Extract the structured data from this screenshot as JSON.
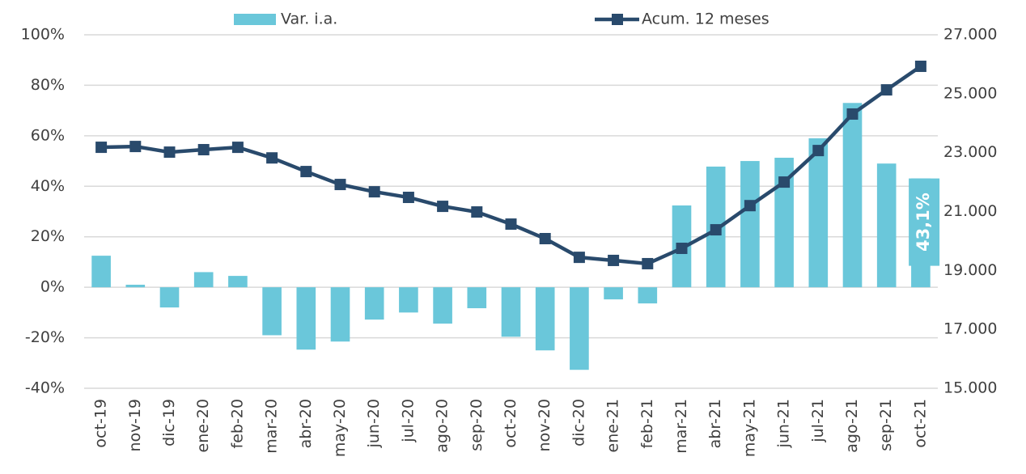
{
  "chart_data": {
    "type": "bar_line",
    "categories": [
      "oct-19",
      "nov-19",
      "dic-19",
      "ene-20",
      "feb-20",
      "mar-20",
      "abr-20",
      "may-20",
      "jun-20",
      "jul-20",
      "ago-20",
      "sep-20",
      "oct-20",
      "nov-20",
      "dic-20",
      "ene-21",
      "feb-21",
      "mar-21",
      "abr-21",
      "may-21",
      "jun-21",
      "jul-21",
      "ago-21",
      "sep-21",
      "oct-21"
    ],
    "series": [
      {
        "name": "Var. i.a.",
        "type": "bar",
        "color": "#6ac7da",
        "values": [
          12.5,
          1,
          -8,
          6,
          4.5,
          -19,
          -24.7,
          -21.5,
          -12.8,
          -10,
          -14.4,
          -8.3,
          -19.6,
          -25,
          -32.7,
          -4.8,
          -6.4,
          32.4,
          47.8,
          50,
          51.3,
          59,
          73,
          49,
          43.1
        ],
        "value_labels": [
          null,
          null,
          null,
          null,
          null,
          null,
          null,
          null,
          null,
          null,
          null,
          null,
          null,
          null,
          null,
          null,
          null,
          null,
          null,
          null,
          null,
          null,
          null,
          null,
          "43,1%"
        ]
      },
      {
        "name": "Acum. 12 meses",
        "type": "line",
        "axis": "y2",
        "color": "#294a6c",
        "values": [
          23181,
          23208,
          23016,
          23100,
          23180,
          22820,
          22357,
          21918,
          21670,
          21480,
          21176,
          20985,
          20573,
          20080,
          19445,
          19340,
          19230,
          19750,
          20380,
          21200,
          22000,
          23070,
          24310,
          25130,
          25930
        ]
      }
    ],
    "ylim": [
      -40,
      100
    ],
    "yticks": [
      {
        "value": -40,
        "label": "-40%"
      },
      {
        "value": -20,
        "label": "-20%"
      },
      {
        "value": 0,
        "label": "0%"
      },
      {
        "value": 20,
        "label": "20%"
      },
      {
        "value": 40,
        "label": "40%"
      },
      {
        "value": 60,
        "label": "60%"
      },
      {
        "value": 80,
        "label": "80%"
      },
      {
        "value": 100,
        "label": "100%"
      }
    ],
    "y2lim": [
      15000,
      27000
    ],
    "y2ticks": [
      {
        "value": 15000,
        "label": "15.000"
      },
      {
        "value": 17000,
        "label": "17.000"
      },
      {
        "value": 19000,
        "label": "19.000"
      },
      {
        "value": 21000,
        "label": "21.000"
      },
      {
        "value": 23000,
        "label": "23.000"
      },
      {
        "value": 25000,
        "label": "25.000"
      },
      {
        "value": 27000,
        "label": "27.000"
      }
    ],
    "grid": true
  }
}
